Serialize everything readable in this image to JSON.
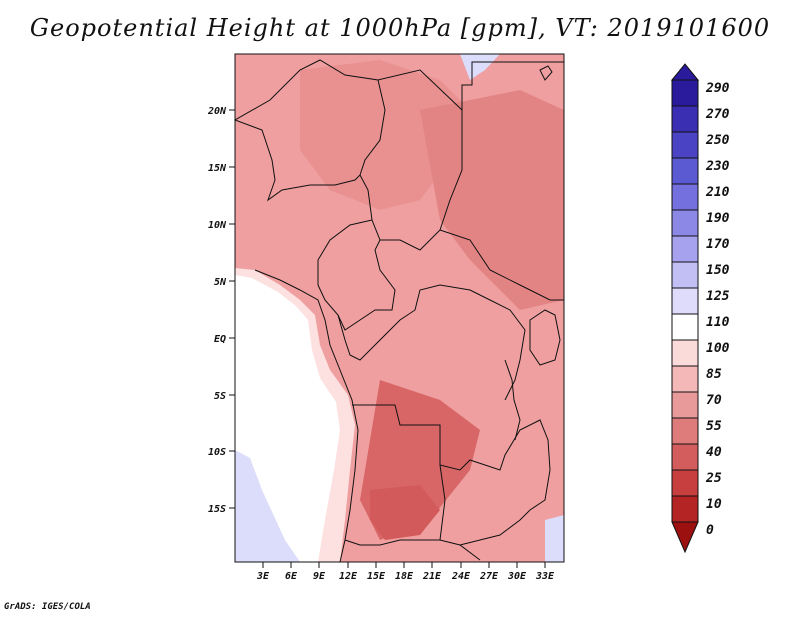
{
  "title": "Geopotential Height at 1000hPa [gpm], VT: 2019101600",
  "credit": "GrADS: IGES/COLA",
  "map": {
    "lat_ticks": [
      "20N",
      "15N",
      "10N",
      "5N",
      "EQ",
      "5S",
      "10S",
      "15S"
    ],
    "lon_ticks": [
      "3E",
      "6E",
      "9E",
      "12E",
      "15E",
      "18E",
      "21E",
      "24E",
      "27E",
      "30E",
      "33E"
    ],
    "lat_range": [
      -20,
      24
    ],
    "lon_range": [
      0,
      35
    ]
  },
  "colorbar": {
    "levels": [
      "290",
      "270",
      "250",
      "230",
      "210",
      "190",
      "170",
      "150",
      "125",
      "110",
      "100",
      "85",
      "70",
      "55",
      "40",
      "25",
      "10",
      "0"
    ],
    "colors": [
      "#2a1a9c",
      "#3a2fb2",
      "#4a44c4",
      "#5c5ad2",
      "#7470dd",
      "#8c88e6",
      "#a6a2ee",
      "#c2bff5",
      "#dedcfa",
      "#ffffff",
      "#fbdada",
      "#f4b8b8",
      "#e89a9a",
      "#de7c7c",
      "#d35d5d",
      "#c83f3f",
      "#b52424",
      "#9c1010"
    ]
  },
  "regions": {
    "land": "#ef9f9f",
    "ocean": "#ffffff",
    "coast": "#fde0e0",
    "sahara": "#e99090",
    "central": "#e38484",
    "south": "#d86666",
    "southern_core": "#d25a5a",
    "arctic_blue": "#dcdcfb"
  }
}
